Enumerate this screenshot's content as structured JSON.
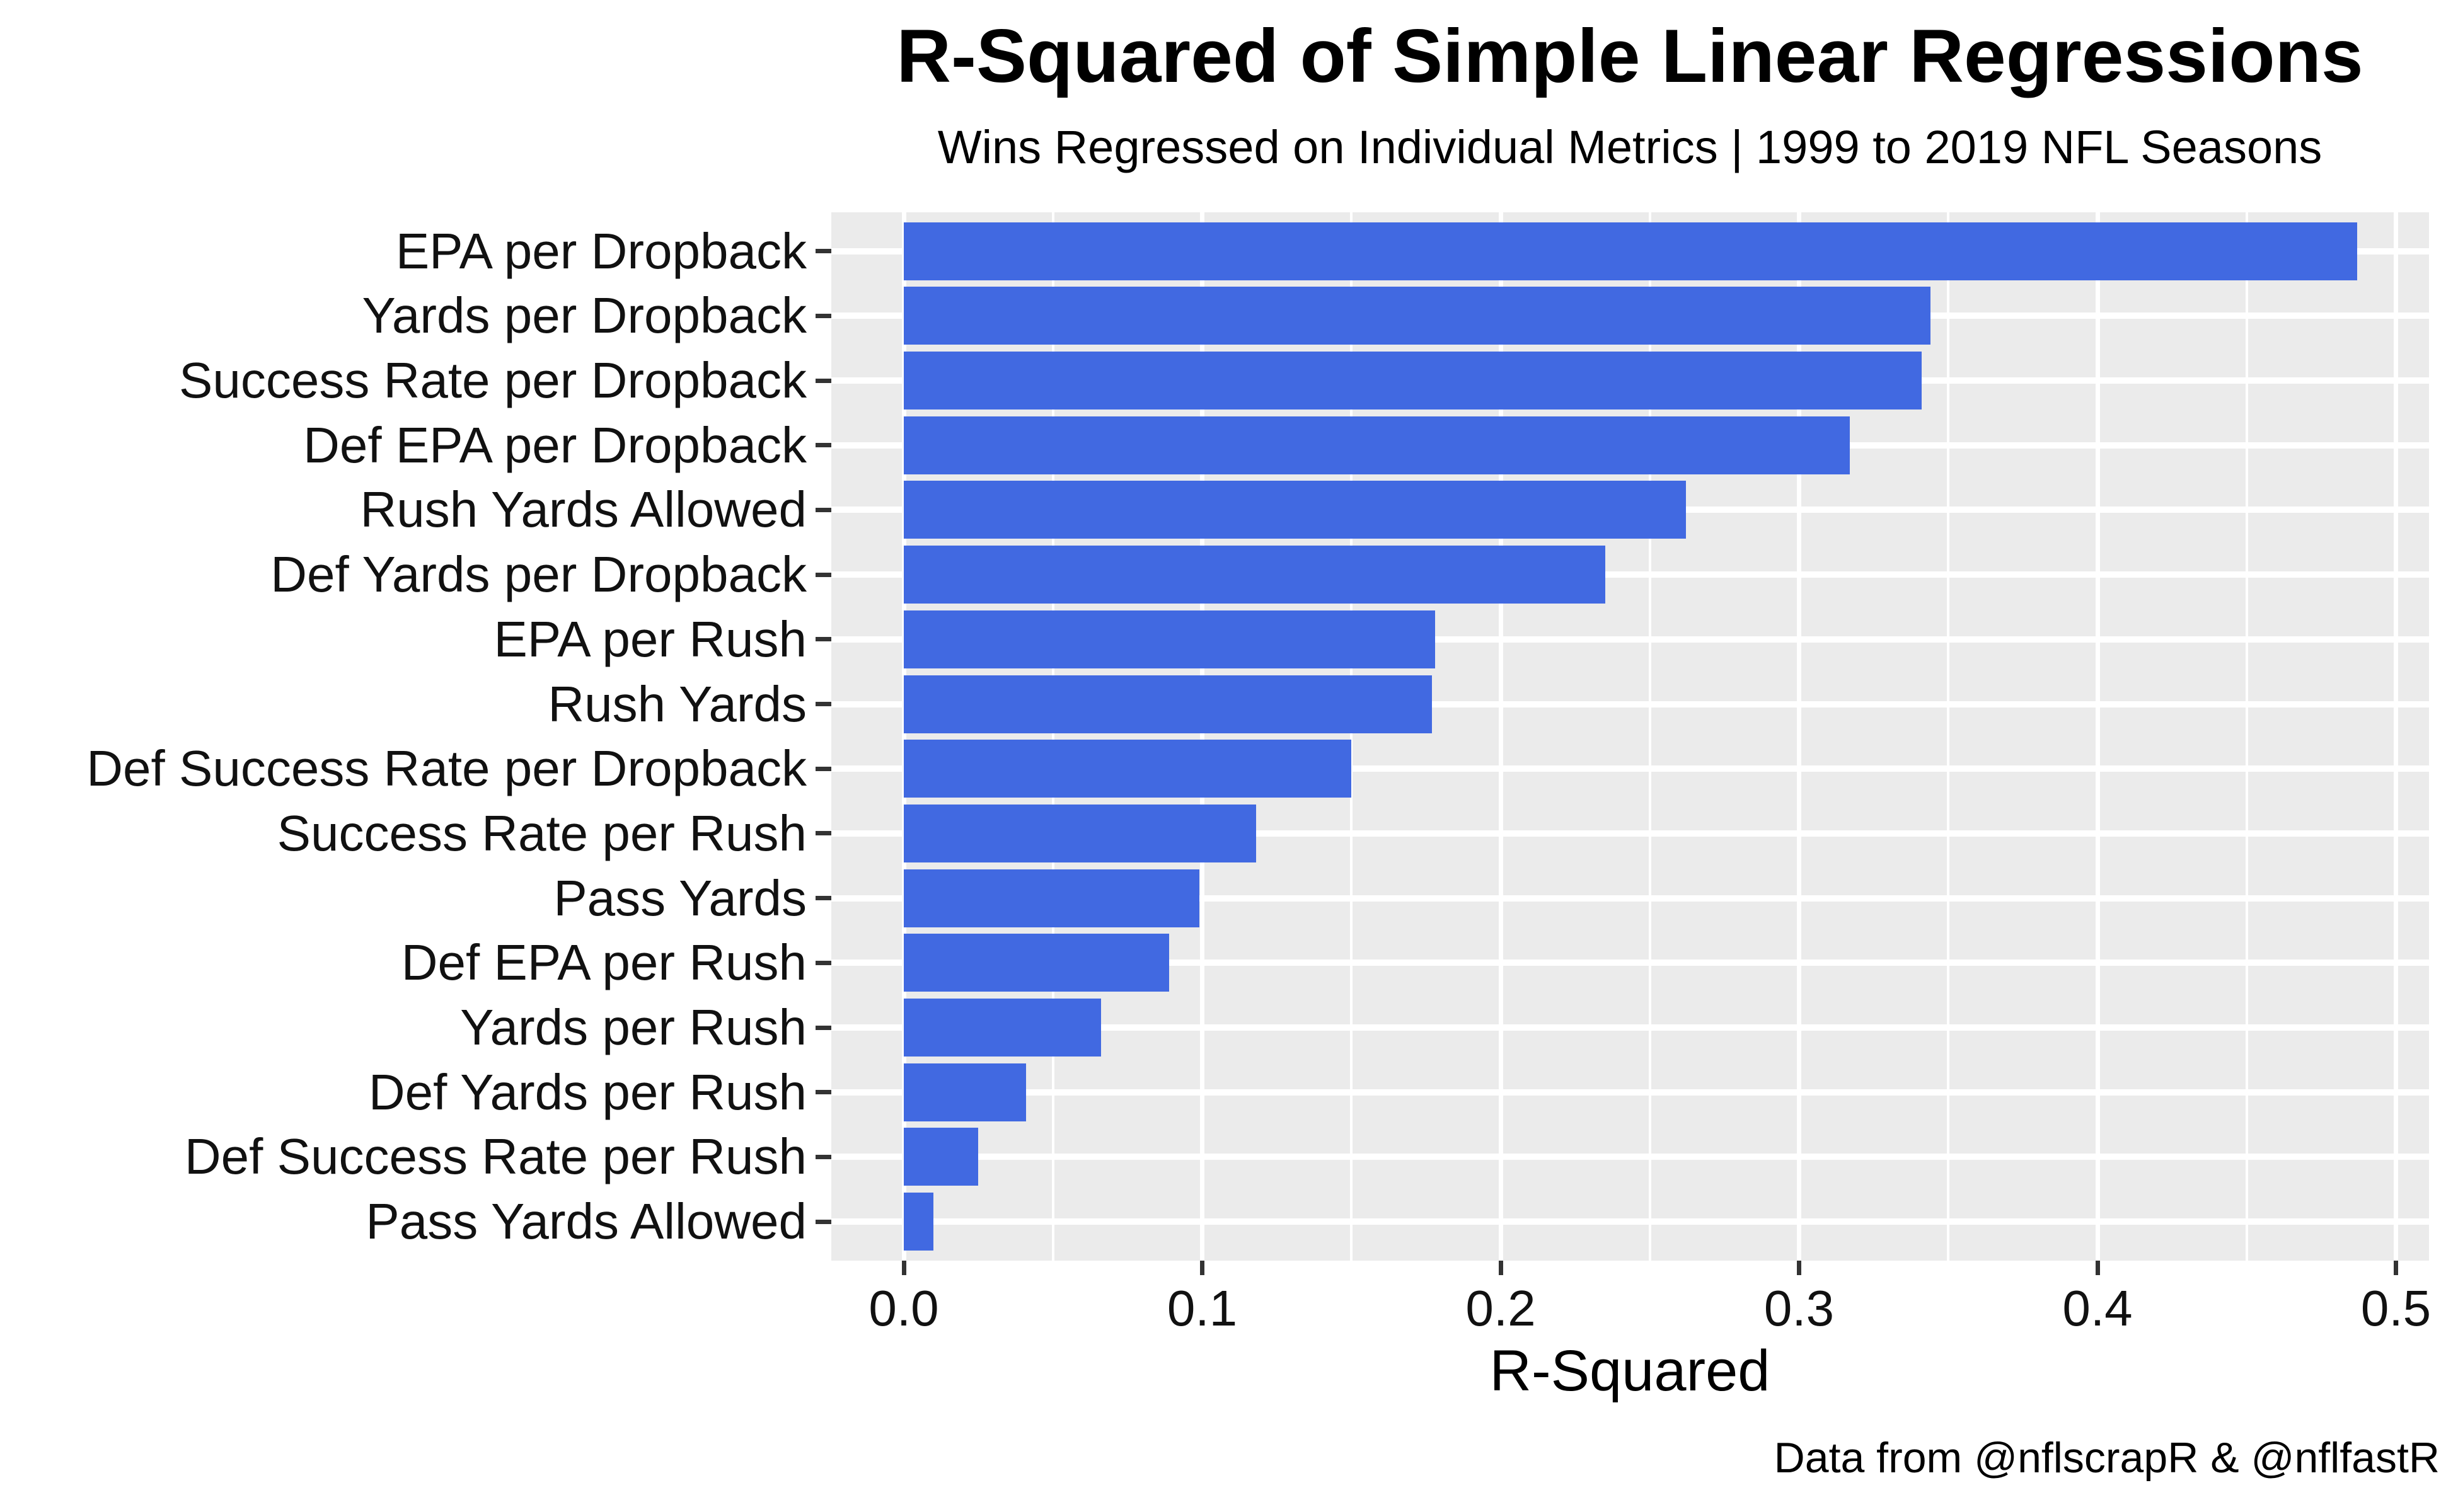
{
  "chart_data": {
    "type": "bar",
    "orientation": "horizontal",
    "title": "R-Squared of Simple Linear Regressions",
    "subtitle": "Wins Regressed on Individual Metrics | 1999 to 2019 NFL Seasons",
    "xlabel": "R-Squared",
    "ylabel": "",
    "caption": "Data from @nflscrapR & @nflfastR",
    "categories": [
      "EPA per Dropback",
      "Yards per Dropback",
      "Success Rate per Dropback",
      "Def EPA per Dropback",
      "Rush Yards Allowed",
      "Def Yards per Dropback",
      "EPA per Rush",
      "Rush Yards",
      "Def Success Rate per Dropback",
      "Success Rate per Rush",
      "Pass Yards",
      "Def EPA per Rush",
      "Yards per Rush",
      "Def Yards per Rush",
      "Def Success Rate per Rush",
      "Pass Yards Allowed"
    ],
    "values": [
      0.487,
      0.344,
      0.341,
      0.317,
      0.262,
      0.235,
      0.178,
      0.177,
      0.15,
      0.118,
      0.099,
      0.089,
      0.066,
      0.041,
      0.025,
      0.01
    ],
    "x_ticks": [
      {
        "label": "0.0",
        "value": 0.0
      },
      {
        "label": "0.1",
        "value": 0.1
      },
      {
        "label": "0.2",
        "value": 0.2
      },
      {
        "label": "0.3",
        "value": 0.3
      },
      {
        "label": "0.4",
        "value": 0.4
      },
      {
        "label": "0.5",
        "value": 0.5
      }
    ],
    "x_minor_ticks": [
      0.05,
      0.15,
      0.25,
      0.35,
      0.45
    ],
    "xlim": [
      -0.0243,
      0.5112
    ],
    "grid": "on",
    "legend": "none",
    "colors": {
      "bar": "#4169E1",
      "panel_bg": "#EBEBEB",
      "grid": "#FFFFFF",
      "tick": "#333333",
      "text": "#000000"
    }
  }
}
